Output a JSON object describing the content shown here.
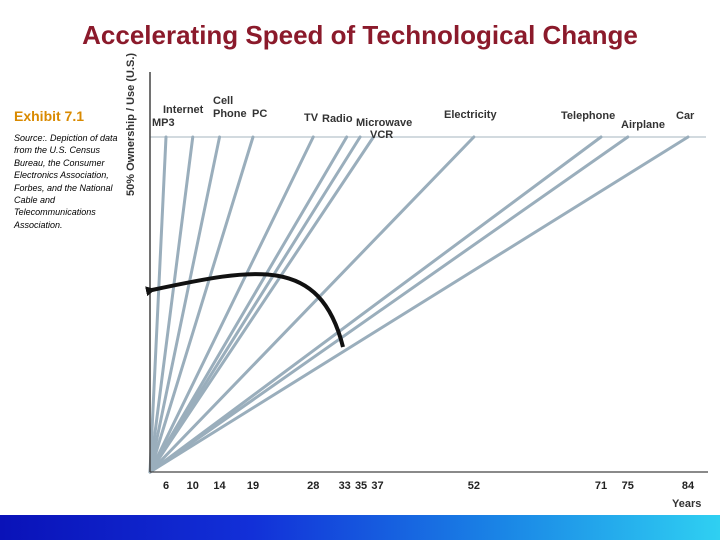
{
  "slide": {
    "title": "Accelerating Speed of Technological Change",
    "exhibit": "Exhibit 7.1",
    "source": "Source:. Depiction of data from the U.S. Census Bureau, the Consumer Electronics Association, Forbes, and the National Cable and Telecommunications Association."
  },
  "colors": {
    "title": "#8b1a2b",
    "exhibit": "#d98a00",
    "lines": "#9aaebc",
    "arrow": "#111111",
    "bottom_bar": [
      "#0a12b8",
      "#2fd0f2"
    ]
  },
  "chart_data": {
    "type": "line",
    "ylabel": "50% Ownership / Use (U.S.)",
    "xlabel": "Years",
    "xticks": [
      6,
      10,
      14,
      19,
      28,
      33,
      35,
      37,
      52,
      71,
      75,
      84
    ],
    "series": [
      {
        "name": "MP3",
        "years": 6
      },
      {
        "name": "Internet",
        "years": 10
      },
      {
        "name": "Cell Phone",
        "years": 14
      },
      {
        "name": "PC",
        "years": 19
      },
      {
        "name": "TV",
        "years": 28
      },
      {
        "name": "Radio",
        "years": 33
      },
      {
        "name": "Microwave",
        "years": 35
      },
      {
        "name": "VCR",
        "years": 37
      },
      {
        "name": "Electricity",
        "years": 52
      },
      {
        "name": "Telephone",
        "years": 71
      },
      {
        "name": "Airplane",
        "years": 75
      },
      {
        "name": "Car",
        "years": 84
      }
    ],
    "annotation": "curved arrow sweeping from the slower technologies toward the faster ones",
    "grid": false
  }
}
